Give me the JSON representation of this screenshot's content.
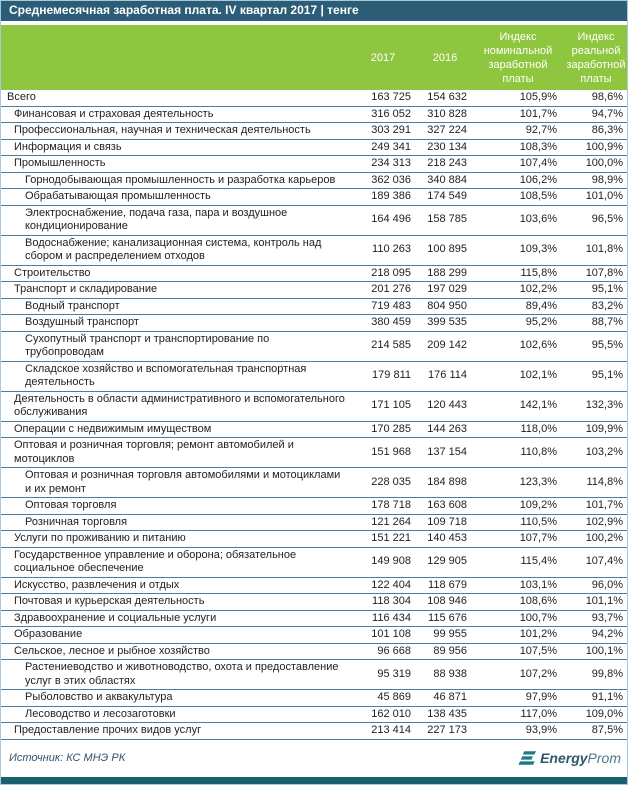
{
  "title_bar": {
    "title": "Среднемесячная заработная плата. IV квартал 2017 | тенге"
  },
  "chart_data": {
    "type": "table",
    "title": "Среднемесячная заработная плата. IV квартал 2017 | тенге",
    "unit": "тенге",
    "columns": [
      "",
      "2017",
      "2016",
      "Индекс номинальной заработной платы",
      "Индекс реальной заработной платы"
    ],
    "rows": [
      {
        "label": "Всего",
        "indent": 0,
        "values": [
          "163 725",
          "154 632",
          "105,9%",
          "98,6%"
        ]
      },
      {
        "label": "Финансовая и страховая деятельность",
        "indent": 1,
        "values": [
          "316 052",
          "310 828",
          "101,7%",
          "94,7%"
        ]
      },
      {
        "label": "Профессиональная, научная и техническая деятельность",
        "indent": 1,
        "values": [
          "303 291",
          "327 224",
          "92,7%",
          "86,3%"
        ]
      },
      {
        "label": "Информация и связь",
        "indent": 1,
        "values": [
          "249 341",
          "230 134",
          "108,3%",
          "100,9%"
        ]
      },
      {
        "label": "Промышленность",
        "indent": 1,
        "values": [
          "234 313",
          "218 243",
          "107,4%",
          "100,0%"
        ]
      },
      {
        "label": "Горнодобывающая промышленность и разработка карьеров",
        "indent": 2,
        "values": [
          "362 036",
          "340 884",
          "106,2%",
          "98,9%"
        ]
      },
      {
        "label": "Обрабатывающая промышленность",
        "indent": 2,
        "values": [
          "189 386",
          "174 549",
          "108,5%",
          "101,0%"
        ]
      },
      {
        "label": "Электроснабжение, подача газа, пара и воздушное кондиционирование",
        "indent": 2,
        "values": [
          "164 496",
          "158 785",
          "103,6%",
          "96,5%"
        ]
      },
      {
        "label": "Водоснабжение; канализационная система, контроль над сбором и распределением отходов",
        "indent": 2,
        "values": [
          "110 263",
          "100 895",
          "109,3%",
          "101,8%"
        ]
      },
      {
        "label": "Строительство",
        "indent": 1,
        "values": [
          "218 095",
          "188 299",
          "115,8%",
          "107,8%"
        ]
      },
      {
        "label": "Транспорт и складирование",
        "indent": 1,
        "values": [
          "201 276",
          "197 029",
          "102,2%",
          "95,1%"
        ]
      },
      {
        "label": "Водный транспорт",
        "indent": 2,
        "values": [
          "719 483",
          "804 950",
          "89,4%",
          "83,2%"
        ]
      },
      {
        "label": "Воздушный транспорт",
        "indent": 2,
        "values": [
          "380 459",
          "399 535",
          "95,2%",
          "88,7%"
        ]
      },
      {
        "label": "Сухопутный транспорт и транспортирование по трубопроводам",
        "indent": 2,
        "values": [
          "214 585",
          "209 142",
          "102,6%",
          "95,5%"
        ]
      },
      {
        "label": "Складское хозяйство и вспомогательная транспортная деятельность",
        "indent": 2,
        "values": [
          "179 811",
          "176 114",
          "102,1%",
          "95,1%"
        ]
      },
      {
        "label": "Деятельность в области административного и вспомогательного обслуживания",
        "indent": 1,
        "values": [
          "171 105",
          "120 443",
          "142,1%",
          "132,3%"
        ]
      },
      {
        "label": "Операции с недвижимым имуществом",
        "indent": 1,
        "values": [
          "170 285",
          "144 263",
          "118,0%",
          "109,9%"
        ]
      },
      {
        "label": "Оптовая и розничная торговля; ремонт автомобилей и мотоциклов",
        "indent": 1,
        "values": [
          "151 968",
          "137 154",
          "110,8%",
          "103,2%"
        ]
      },
      {
        "label": "Оптовая и розничная торговля автомобилями и мотоциклами и их ремонт",
        "indent": 2,
        "values": [
          "228 035",
          "184 898",
          "123,3%",
          "114,8%"
        ]
      },
      {
        "label": "Оптовая торговля",
        "indent": 2,
        "values": [
          "178 718",
          "163 608",
          "109,2%",
          "101,7%"
        ]
      },
      {
        "label": "Розничная торговля",
        "indent": 2,
        "values": [
          "121 264",
          "109 718",
          "110,5%",
          "102,9%"
        ]
      },
      {
        "label": "Услуги по проживанию и питанию",
        "indent": 1,
        "values": [
          "151 221",
          "140 453",
          "107,7%",
          "100,2%"
        ]
      },
      {
        "label": "Государственное управление и оборона; обязательное социальное обеспечение",
        "indent": 1,
        "values": [
          "149 908",
          "129 905",
          "115,4%",
          "107,4%"
        ]
      },
      {
        "label": "Искусство, развлечения и отдых",
        "indent": 1,
        "values": [
          "122 404",
          "118 679",
          "103,1%",
          "96,0%"
        ]
      },
      {
        "label": "Почтовая и курьерская деятельность",
        "indent": 1,
        "values": [
          "118 304",
          "108 946",
          "108,6%",
          "101,1%"
        ]
      },
      {
        "label": "Здравоохранение и социальные услуги",
        "indent": 1,
        "values": [
          "116 434",
          "115 676",
          "100,7%",
          "93,7%"
        ]
      },
      {
        "label": "Образование",
        "indent": 1,
        "values": [
          "101 108",
          "99 955",
          "101,2%",
          "94,2%"
        ]
      },
      {
        "label": "Сельское, лесное и рыбное хозяйство",
        "indent": 1,
        "values": [
          "96 668",
          "89 956",
          "107,5%",
          "100,1%"
        ]
      },
      {
        "label": "Растениеводство и животноводство, охота и предоставление услуг в этих областях",
        "indent": 2,
        "values": [
          "95 319",
          "88 938",
          "107,2%",
          "99,8%"
        ]
      },
      {
        "label": "Рыболовство и аквакультура",
        "indent": 2,
        "values": [
          "45 869",
          "46 871",
          "97,9%",
          "91,1%"
        ]
      },
      {
        "label": "Лесоводство и лесозаготовки",
        "indent": 2,
        "values": [
          "162 010",
          "138 435",
          "117,0%",
          "109,0%"
        ]
      },
      {
        "label": "Предоставление прочих видов услуг",
        "indent": 1,
        "values": [
          "213 414",
          "227 173",
          "93,9%",
          "87,5%"
        ]
      }
    ]
  },
  "footer": {
    "source": "Источник: КС МНЭ РК",
    "logo": {
      "bold": "Energy",
      "light": "Prom"
    }
  },
  "colors": {
    "title_bar_bg": "#2b5d77",
    "header_bg": "#8fc63f",
    "row_line": "#4e7d99",
    "bottom_bar": "#17616f",
    "source_text": "#31556e",
    "logo_teal": "#1d7786"
  }
}
